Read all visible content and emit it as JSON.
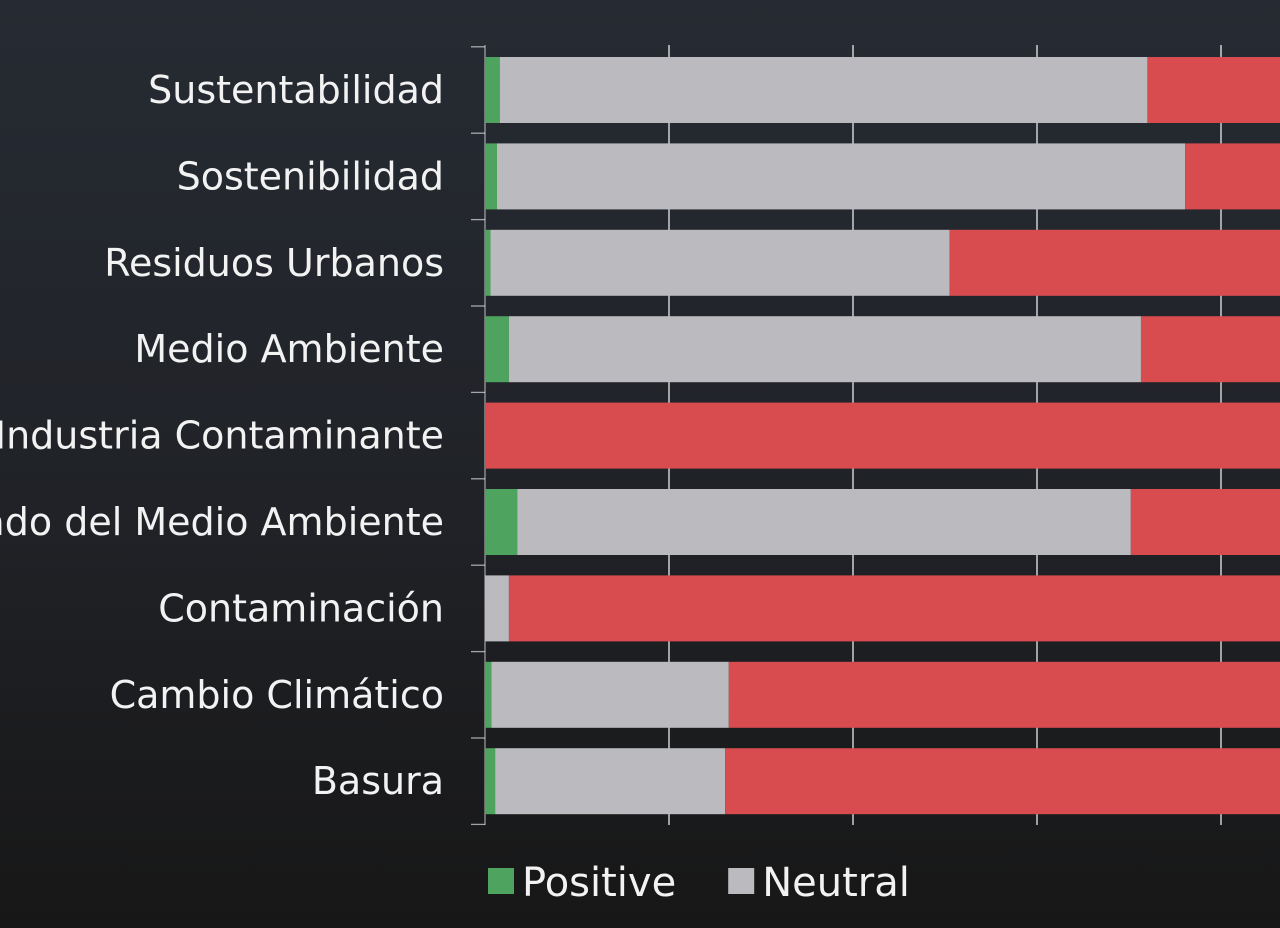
{
  "chart_data": {
    "type": "bar",
    "orientation": "horizontal",
    "stacked": true,
    "percent_stacked": true,
    "categories": [
      "Sustentabilidad",
      "Sostenibilidad",
      "Residuos Urbanos",
      "Medio Ambiente",
      "Industria Contaminante",
      "Cuidado del Medio Ambiente",
      "Contaminación",
      "Cambio Climático",
      "Basura"
    ],
    "series": [
      {
        "name": "Positive",
        "color": "#4ea35e",
        "values": [
          1.6,
          1.3,
          0.6,
          2.6,
          0.0,
          3.5,
          0.0,
          0.7,
          1.1
        ]
      },
      {
        "name": "Neutral",
        "color": "#bbbabe",
        "values": [
          70.4,
          74.8,
          49.9,
          68.7,
          0.0,
          66.7,
          2.6,
          25.8,
          25.0
        ]
      },
      {
        "series_color_only": true,
        "color": "#d84b4f",
        "values": [
          28.0,
          23.9,
          49.5,
          28.7,
          100.0,
          29.8,
          97.4,
          73.5,
          73.9
        ]
      }
    ],
    "xlim": [
      0,
      100
    ],
    "x_gridlines": [
      0,
      20,
      40,
      60,
      80
    ],
    "grid": true,
    "legend": {
      "position": "bottom",
      "entries": [
        "Positive",
        "Neutral"
      ]
    },
    "background_color": "#1b1c1f",
    "gridline_color": "#ffffff",
    "text_color": "#f2f2f2"
  }
}
